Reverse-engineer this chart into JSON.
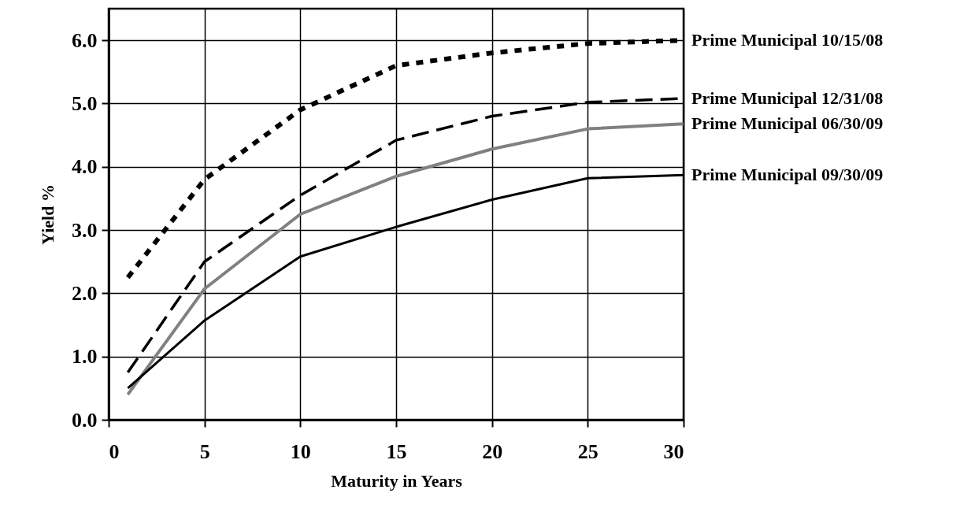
{
  "chart_data": {
    "type": "line",
    "xlabel": "Maturity in Years",
    "ylabel": "Yield %",
    "x": [
      1,
      5,
      10,
      15,
      20,
      25,
      30
    ],
    "xlim": [
      0,
      30
    ],
    "xticks": [
      0,
      5,
      10,
      15,
      20,
      25,
      30
    ],
    "ylim": [
      0,
      6.5
    ],
    "yticks": [
      {
        "value": 0,
        "label": "0.0"
      },
      {
        "value": 1,
        "label": "1.0"
      },
      {
        "value": 2,
        "label": "2.0"
      },
      {
        "value": 3,
        "label": "3.0"
      },
      {
        "value": 4,
        "label": "4.0"
      },
      {
        "value": 5,
        "label": "5.0"
      },
      {
        "value": 6,
        "label": "6.0"
      }
    ],
    "grid": true,
    "marker": "none",
    "series": [
      {
        "name": "Prime Municipal 10/15/08",
        "color": "#000000",
        "line_style": "dotted",
        "values": [
          2.25,
          3.8,
          4.9,
          5.6,
          5.8,
          5.95,
          6.0
        ]
      },
      {
        "name": "Prime Municipal 12/31/08",
        "color": "#000000",
        "line_style": "dashed",
        "values": [
          0.75,
          2.5,
          3.55,
          4.42,
          4.8,
          5.02,
          5.08
        ]
      },
      {
        "name": "Prime Municipal 06/30/09",
        "color": "#808080",
        "line_style": "solid",
        "values": [
          0.4,
          2.07,
          3.25,
          3.85,
          4.28,
          4.6,
          4.68
        ]
      },
      {
        "name": "Prime Municipal 09/30/09",
        "color": "#000000",
        "line_style": "solid",
        "values": [
          0.5,
          1.57,
          2.58,
          3.05,
          3.48,
          3.82,
          3.87
        ]
      }
    ]
  }
}
